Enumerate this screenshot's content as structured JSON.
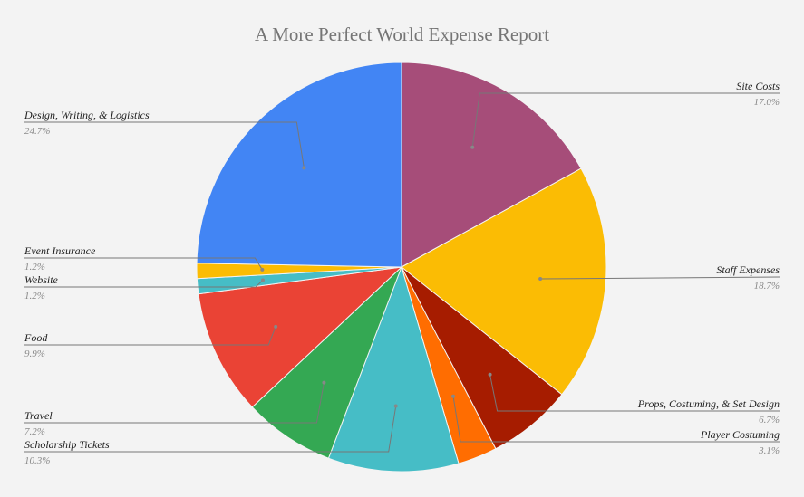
{
  "chart_data": {
    "type": "pie",
    "title": "A More Perfect World Expense Report",
    "slices": [
      {
        "label": "Site Costs",
        "percent_label": "17.0%",
        "value": 17.0,
        "color": "#a64d79"
      },
      {
        "label": "Staff Expenses",
        "percent_label": "18.7%",
        "value": 18.7,
        "color": "#fbbc04"
      },
      {
        "label": "Props, Costuming, & Set Design",
        "percent_label": "6.7%",
        "value": 6.7,
        "color": "#a61c00"
      },
      {
        "label": "Player Costuming",
        "percent_label": "3.1%",
        "value": 3.1,
        "color": "#ff6d01"
      },
      {
        "label": "Scholarship Tickets",
        "percent_label": "10.3%",
        "value": 10.3,
        "color": "#46bdc6"
      },
      {
        "label": "Travel",
        "percent_label": "7.2%",
        "value": 7.2,
        "color": "#34a853"
      },
      {
        "label": "Food",
        "percent_label": "9.9%",
        "value": 9.9,
        "color": "#ea4335"
      },
      {
        "label": "Website",
        "percent_label": "1.2%",
        "value": 1.2,
        "color": "#46bdc6"
      },
      {
        "label": "Event Insurance",
        "percent_label": "1.2%",
        "value": 1.2,
        "color": "#fbbc04"
      },
      {
        "label": "Design, Writing, & Logistics",
        "percent_label": "24.7%",
        "value": 24.7,
        "color": "#4285f4"
      }
    ],
    "start_angle": "12 o'clock",
    "direction": "clockwise",
    "legend": "none (labels with leader lines)"
  }
}
